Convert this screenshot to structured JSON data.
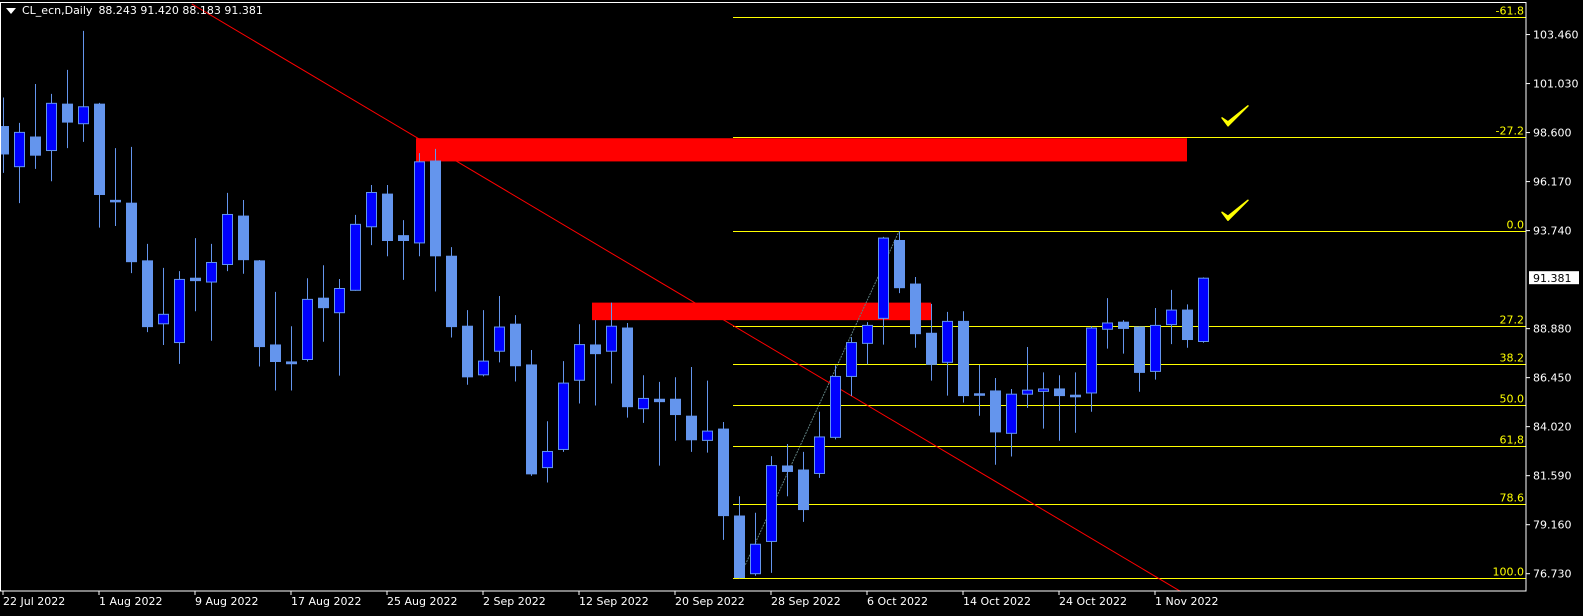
{
  "header": {
    "symbol_timeframe": "CL_ecn,Daily",
    "ohlc_text": "88.243 91.420 88.183 91.381"
  },
  "colors": {
    "background": "#000000",
    "bull_body": "#0000FF",
    "bear_body": "#6495ED",
    "wick": "#6495ED",
    "fib": "#FFFF00",
    "trendline": "#FF0000",
    "zone": "#FF0000",
    "fib_diagonal": "#5F7F7F",
    "axis_text": "#FFFFFF"
  },
  "chart_data": {
    "type": "candlestick",
    "title": "CL_ecn,Daily",
    "ylim": [
      75.85,
      105.0
    ],
    "candle_fields": [
      "open",
      "high",
      "low",
      "close"
    ],
    "candles": [
      [
        98.9,
        100.34,
        96.6,
        97.54
      ],
      [
        96.91,
        99.08,
        95.1,
        98.61
      ],
      [
        98.38,
        101.01,
        96.8,
        97.48
      ],
      [
        97.71,
        100.52,
        96.19,
        100.05
      ],
      [
        100.01,
        101.71,
        97.83,
        99.12
      ],
      [
        99.04,
        103.64,
        98.14,
        99.88
      ],
      [
        100.01,
        100.07,
        93.89,
        95.53
      ],
      [
        95.24,
        97.83,
        93.97,
        95.18
      ],
      [
        95.1,
        97.89,
        91.63,
        92.2
      ],
      [
        92.24,
        93.08,
        88.71,
        88.98
      ],
      [
        89.12,
        91.89,
        88.07,
        89.59
      ],
      [
        88.19,
        91.73,
        87.13,
        91.32
      ],
      [
        91.38,
        93.37,
        89.74,
        91.26
      ],
      [
        91.19,
        93.08,
        88.28,
        92.16
      ],
      [
        92.06,
        95.61,
        91.73,
        94.54
      ],
      [
        94.46,
        95.26,
        91.6,
        92.3
      ],
      [
        92.24,
        92.28,
        87.0,
        87.99
      ],
      [
        88.07,
        90.7,
        85.81,
        87.25
      ],
      [
        87.23,
        89.0,
        85.81,
        87.14
      ],
      [
        87.35,
        91.38,
        87.25,
        90.33
      ],
      [
        90.39,
        92.02,
        88.23,
        89.92
      ],
      [
        89.67,
        91.34,
        86.55,
        90.87
      ],
      [
        90.78,
        94.52,
        90.76,
        94.05
      ],
      [
        93.93,
        96.0,
        93.02,
        95.63
      ],
      [
        95.55,
        96.0,
        92.47,
        93.25
      ],
      [
        93.49,
        94.26,
        91.3,
        93.25
      ],
      [
        93.13,
        97.58,
        92.47,
        97.15
      ],
      [
        97.19,
        97.79,
        90.72,
        92.49
      ],
      [
        92.47,
        92.92,
        88.44,
        88.98
      ],
      [
        89.0,
        89.8,
        86.1,
        86.49
      ],
      [
        86.59,
        89.8,
        86.51,
        87.27
      ],
      [
        87.76,
        90.5,
        87.21,
        88.96
      ],
      [
        89.1,
        89.55,
        86.26,
        87.04
      ],
      [
        87.08,
        87.82,
        81.58,
        81.68
      ],
      [
        81.99,
        84.29,
        81.25,
        82.79
      ],
      [
        82.89,
        87.27,
        82.77,
        86.18
      ],
      [
        86.32,
        89.1,
        85.17,
        88.09
      ],
      [
        88.07,
        89.3,
        85.07,
        87.64
      ],
      [
        87.76,
        90.17,
        86.16,
        89.0
      ],
      [
        88.91,
        89.16,
        84.47,
        85.01
      ],
      [
        84.91,
        86.57,
        84.21,
        85.42
      ],
      [
        85.38,
        86.24,
        82.09,
        85.26
      ],
      [
        85.38,
        86.47,
        83.32,
        84.62
      ],
      [
        84.54,
        86.98,
        82.77,
        83.37
      ],
      [
        83.34,
        86.3,
        82.73,
        83.8
      ],
      [
        83.9,
        84.25,
        78.41,
        79.61
      ],
      [
        79.59,
        80.57,
        76.5,
        76.54
      ],
      [
        76.73,
        79.75,
        76.63,
        78.19
      ],
      [
        78.33,
        82.56,
        76.77,
        82.09
      ],
      [
        82.07,
        83.16,
        80.57,
        81.8
      ],
      [
        81.87,
        82.77,
        79.3,
        79.91
      ],
      [
        81.7,
        84.76,
        81.48,
        83.51
      ],
      [
        83.49,
        87.06,
        83.39,
        86.51
      ],
      [
        86.51,
        88.46,
        85.54,
        88.19
      ],
      [
        88.15,
        89.2,
        87.11,
        89.04
      ],
      [
        89.39,
        93.43,
        88.09,
        93.37
      ],
      [
        93.25,
        93.7,
        90.64,
        90.91
      ],
      [
        91.09,
        91.44,
        87.93,
        88.63
      ],
      [
        88.65,
        90.11,
        86.3,
        87.11
      ],
      [
        87.21,
        89.71,
        85.56,
        89.24
      ],
      [
        89.24,
        89.74,
        85.21,
        85.56
      ],
      [
        85.65,
        87.08,
        84.56,
        85.61
      ],
      [
        85.79,
        86.43,
        82.13,
        83.76
      ],
      [
        83.69,
        85.89,
        82.54,
        85.63
      ],
      [
        85.63,
        87.97,
        84.95,
        85.83
      ],
      [
        85.77,
        86.71,
        83.92,
        85.89
      ],
      [
        85.89,
        86.57,
        83.32,
        85.56
      ],
      [
        85.58,
        86.71,
        83.72,
        85.5
      ],
      [
        85.69,
        89.0,
        84.76,
        88.91
      ],
      [
        88.85,
        90.39,
        87.89,
        89.16
      ],
      [
        89.2,
        89.3,
        87.64,
        88.89
      ],
      [
        88.96,
        89.0,
        85.75,
        86.71
      ],
      [
        86.76,
        89.9,
        86.35,
        89.04
      ],
      [
        89.08,
        90.8,
        88.11,
        89.8
      ],
      [
        89.8,
        90.08,
        87.93,
        88.34
      ],
      [
        88.243,
        91.42,
        88.183,
        91.381
      ]
    ],
    "x_ticks": [
      {
        "bar": 0,
        "label": "22 Jul 2022"
      },
      {
        "bar": 6,
        "label": "1 Aug 2022"
      },
      {
        "bar": 12,
        "label": "9 Aug 2022"
      },
      {
        "bar": 18,
        "label": "17 Aug 2022"
      },
      {
        "bar": 24,
        "label": "25 Aug 2022"
      },
      {
        "bar": 30,
        "label": "2 Sep 2022"
      },
      {
        "bar": 36,
        "label": "12 Sep 2022"
      },
      {
        "bar": 42,
        "label": "20 Sep 2022"
      },
      {
        "bar": 48,
        "label": "28 Sep 2022"
      },
      {
        "bar": 54,
        "label": "6 Oct 2022"
      },
      {
        "bar": 60,
        "label": "14 Oct 2022"
      },
      {
        "bar": 66,
        "label": "24 Oct 2022"
      },
      {
        "bar": 72,
        "label": "1 Nov 2022"
      }
    ],
    "y_ticks": [
      "103.460",
      "101.030",
      "98.600",
      "96.170",
      "93.740",
      "88.880",
      "86.450",
      "84.020",
      "81.590",
      "79.160",
      "76.730"
    ],
    "current_price": "91.381",
    "fibonacci": {
      "from": {
        "bar": 46,
        "price": 76.5
      },
      "to": {
        "bar": 56,
        "price": 93.7
      },
      "levels": [
        {
          "label": "-61.8",
          "price": 104.33
        },
        {
          "label": "-27.2",
          "price": 98.38
        },
        {
          "label": "0.0",
          "price": 93.7
        },
        {
          "label": "27.2",
          "price": 89.02
        },
        {
          "label": "38.2",
          "price": 87.13
        },
        {
          "label": "50.0",
          "price": 85.1
        },
        {
          "label": "61,8",
          "price": 83.07
        },
        {
          "label": "78.6",
          "price": 80.18
        },
        {
          "label": "100.0",
          "price": 76.5
        }
      ]
    },
    "trendline": {
      "start": {
        "bar": 11.8,
        "price": 104.98
      },
      "end": {
        "bar": 73.6,
        "price": 75.85
      }
    },
    "zones": [
      {
        "bar_start": 26,
        "bar_end": 74,
        "price_top": 98.32,
        "price_bottom": 97.17
      },
      {
        "bar_start": 37,
        "bar_end": 58,
        "price_top": 90.17,
        "price_bottom": 89.3
      }
    ],
    "checkmarks": [
      {
        "bar": 77,
        "price": 99.33,
        "icon": "check-icon"
      },
      {
        "bar": 77,
        "price": 94.65,
        "icon": "check-icon"
      }
    ]
  }
}
